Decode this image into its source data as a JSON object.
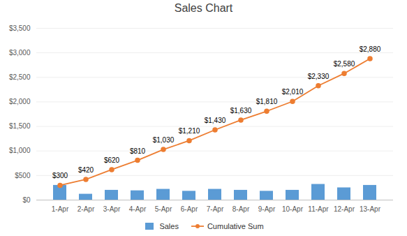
{
  "chart_data": {
    "type": "bar",
    "title": "Sales Chart",
    "categories": [
      "1-Apr",
      "2-Apr",
      "3-Apr",
      "4-Apr",
      "5-Apr",
      "6-Apr",
      "7-Apr",
      "8-Apr",
      "9-Apr",
      "10-Apr",
      "11-Apr",
      "12-Apr",
      "13-Apr"
    ],
    "series": [
      {
        "name": "Sales",
        "type": "bar",
        "color": "#5b9bd5",
        "values": [
          300,
          120,
          200,
          190,
          220,
          180,
          220,
          200,
          180,
          200,
          320,
          250,
          300
        ]
      },
      {
        "name": "Cumulative Sum",
        "type": "line",
        "color": "#ed7d31",
        "marker": "circle",
        "data_labels": true,
        "values": [
          300,
          420,
          620,
          810,
          1030,
          1210,
          1430,
          1630,
          1810,
          2010,
          2330,
          2580,
          2880
        ],
        "value_labels": [
          "$300",
          "$420",
          "$620",
          "$810",
          "$1,030",
          "$1,210",
          "$1,430",
          "$1,630",
          "$1,810",
          "$2,010",
          "$2,330",
          "$2,580",
          "$2,880"
        ]
      }
    ],
    "ylim": [
      0,
      3500
    ],
    "yticks": [
      {
        "value": 0,
        "label": "$0"
      },
      {
        "value": 500,
        "label": "$500"
      },
      {
        "value": 1000,
        "label": "$1,000"
      },
      {
        "value": 1500,
        "label": "$1,500"
      },
      {
        "value": 2000,
        "label": "$2,000"
      },
      {
        "value": 2500,
        "label": "$2,500"
      },
      {
        "value": 3000,
        "label": "$3,000"
      },
      {
        "value": 3500,
        "label": "$3,500"
      }
    ],
    "grid": true,
    "legend": "bottom"
  }
}
